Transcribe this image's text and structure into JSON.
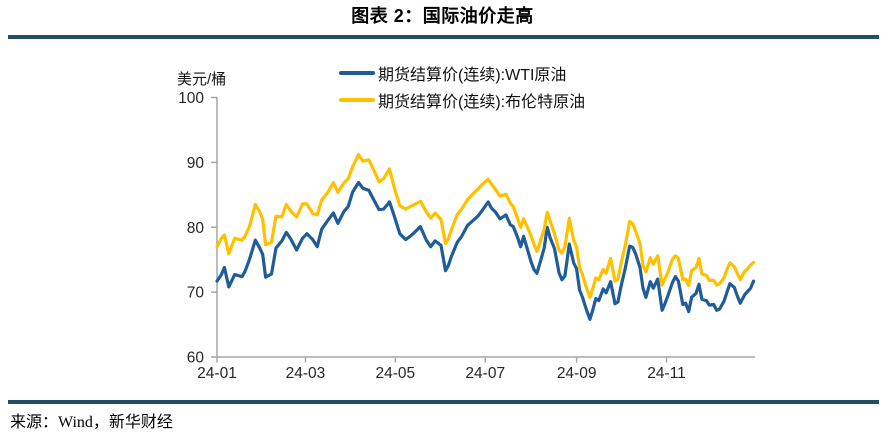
{
  "header": {
    "title": "图表 2：国际油价走高"
  },
  "footer": {
    "source": "来源：Wind，新华财经"
  },
  "colors": {
    "rule": "#1F5063",
    "wti": "#1F5C99",
    "brent": "#FFC000",
    "axis": "#A6A6A6",
    "tick_text": "#262626"
  },
  "chart_data": {
    "type": "line",
    "title": "图表 2：国际油价走高",
    "unit_label": "美元/桶",
    "ylabel": "美元/桶",
    "xlabel": "",
    "ylim": [
      60,
      100
    ],
    "y_ticks": [
      60,
      70,
      80,
      90,
      100
    ],
    "x_range_days": [
      0,
      365
    ],
    "x_ticks": [
      {
        "label": "24-01",
        "day": 0
      },
      {
        "label": "24-03",
        "day": 60
      },
      {
        "label": "24-05",
        "day": 121
      },
      {
        "label": "24-07",
        "day": 182
      },
      {
        "label": "24-09",
        "day": 244
      },
      {
        "label": "24-11",
        "day": 305
      }
    ],
    "grid": false,
    "legend_position": "top",
    "series": [
      {
        "name": "期货结算价(连续):WTI原油",
        "color_key": "wti",
        "points": [
          [
            0,
            71.7
          ],
          [
            3,
            72.7
          ],
          [
            5,
            73.8
          ],
          [
            8,
            70.8
          ],
          [
            12,
            72.7
          ],
          [
            17,
            72.4
          ],
          [
            19,
            73.2
          ],
          [
            22,
            75.0
          ],
          [
            26,
            78.0
          ],
          [
            29,
            76.8
          ],
          [
            31,
            75.8
          ],
          [
            33,
            72.3
          ],
          [
            37,
            72.8
          ],
          [
            40,
            76.8
          ],
          [
            44,
            77.9
          ],
          [
            47,
            79.2
          ],
          [
            50,
            78.2
          ],
          [
            54,
            76.5
          ],
          [
            58,
            78.3
          ],
          [
            61,
            79.0
          ],
          [
            65,
            78.1
          ],
          [
            68,
            77.0
          ],
          [
            71,
            79.7
          ],
          [
            75,
            81.0
          ],
          [
            79,
            82.2
          ],
          [
            82,
            80.6
          ],
          [
            86,
            82.4
          ],
          [
            89,
            83.2
          ],
          [
            92,
            85.4
          ],
          [
            96,
            86.9
          ],
          [
            99,
            86.0
          ],
          [
            103,
            85.7
          ],
          [
            106,
            84.4
          ],
          [
            110,
            82.7
          ],
          [
            113,
            82.8
          ],
          [
            117,
            83.9
          ],
          [
            120,
            81.9
          ],
          [
            124,
            79.0
          ],
          [
            128,
            78.1
          ],
          [
            131,
            78.6
          ],
          [
            134,
            79.2
          ],
          [
            138,
            80.1
          ],
          [
            142,
            78.0
          ],
          [
            145,
            77.0
          ],
          [
            148,
            77.9
          ],
          [
            152,
            77.2
          ],
          [
            155,
            73.3
          ],
          [
            157,
            74.1
          ],
          [
            159,
            75.5
          ],
          [
            163,
            77.7
          ],
          [
            166,
            78.6
          ],
          [
            170,
            80.3
          ],
          [
            173,
            80.9
          ],
          [
            177,
            81.7
          ],
          [
            180,
            82.6
          ],
          [
            184,
            83.9
          ],
          [
            186,
            83.0
          ],
          [
            189,
            82.3
          ],
          [
            192,
            81.3
          ],
          [
            196,
            81.9
          ],
          [
            199,
            80.4
          ],
          [
            201,
            80.1
          ],
          [
            204,
            78.4
          ],
          [
            206,
            77.0
          ],
          [
            208,
            78.6
          ],
          [
            211,
            76.3
          ],
          [
            213,
            74.7
          ],
          [
            215,
            73.5
          ],
          [
            217,
            72.9
          ],
          [
            220,
            75.2
          ],
          [
            222,
            76.8
          ],
          [
            224,
            80.0
          ],
          [
            226,
            78.4
          ],
          [
            229,
            76.7
          ],
          [
            232,
            73.0
          ],
          [
            234,
            71.9
          ],
          [
            236,
            72.5
          ],
          [
            239,
            77.4
          ],
          [
            242,
            74.5
          ],
          [
            244,
            73.6
          ],
          [
            246,
            70.3
          ],
          [
            248,
            69.2
          ],
          [
            250,
            67.7
          ],
          [
            253,
            65.8
          ],
          [
            255,
            67.3
          ],
          [
            257,
            69.0
          ],
          [
            259,
            68.7
          ],
          [
            262,
            70.5
          ],
          [
            264,
            69.9
          ],
          [
            267,
            71.6
          ],
          [
            270,
            68.2
          ],
          [
            272,
            68.5
          ],
          [
            274,
            70.8
          ],
          [
            277,
            73.7
          ],
          [
            280,
            77.1
          ],
          [
            282,
            76.9
          ],
          [
            284,
            75.9
          ],
          [
            287,
            73.8
          ],
          [
            289,
            70.6
          ],
          [
            291,
            69.2
          ],
          [
            294,
            71.6
          ],
          [
            296,
            70.6
          ],
          [
            299,
            72.0
          ],
          [
            302,
            67.2
          ],
          [
            304,
            68.3
          ],
          [
            306,
            69.5
          ],
          [
            309,
            71.5
          ],
          [
            311,
            72.4
          ],
          [
            313,
            71.7
          ],
          [
            316,
            68.1
          ],
          [
            318,
            68.3
          ],
          [
            320,
            67.0
          ],
          [
            322,
            69.2
          ],
          [
            325,
            69.8
          ],
          [
            327,
            71.2
          ],
          [
            329,
            68.9
          ],
          [
            332,
            68.7
          ],
          [
            334,
            68.0
          ],
          [
            337,
            68.1
          ],
          [
            339,
            67.2
          ],
          [
            341,
            67.4
          ],
          [
            344,
            68.6
          ],
          [
            346,
            70.0
          ],
          [
            348,
            71.3
          ],
          [
            351,
            70.7
          ],
          [
            353,
            69.4
          ],
          [
            355,
            68.3
          ],
          [
            358,
            69.6
          ],
          [
            360,
            70.1
          ],
          [
            362,
            70.6
          ],
          [
            364,
            71.7
          ]
        ]
      },
      {
        "name": "期货结算价(连续):布伦特原油",
        "color_key": "brent",
        "points": [
          [
            0,
            77.0
          ],
          [
            3,
            78.3
          ],
          [
            5,
            78.8
          ],
          [
            8,
            75.9
          ],
          [
            12,
            78.3
          ],
          [
            17,
            78.0
          ],
          [
            19,
            78.6
          ],
          [
            22,
            80.1
          ],
          [
            26,
            83.5
          ],
          [
            29,
            82.4
          ],
          [
            31,
            81.2
          ],
          [
            33,
            77.3
          ],
          [
            37,
            77.7
          ],
          [
            40,
            81.7
          ],
          [
            44,
            81.6
          ],
          [
            47,
            83.5
          ],
          [
            50,
            82.5
          ],
          [
            54,
            81.6
          ],
          [
            58,
            83.6
          ],
          [
            61,
            83.6
          ],
          [
            65,
            82.1
          ],
          [
            68,
            81.9
          ],
          [
            71,
            84.2
          ],
          [
            75,
            85.3
          ],
          [
            79,
            86.9
          ],
          [
            82,
            85.4
          ],
          [
            86,
            86.8
          ],
          [
            89,
            87.5
          ],
          [
            92,
            89.3
          ],
          [
            96,
            91.2
          ],
          [
            99,
            90.2
          ],
          [
            103,
            90.4
          ],
          [
            106,
            89.0
          ],
          [
            110,
            87.0
          ],
          [
            113,
            87.5
          ],
          [
            117,
            89.0
          ],
          [
            120,
            86.3
          ],
          [
            124,
            83.3
          ],
          [
            128,
            82.8
          ],
          [
            131,
            83.2
          ],
          [
            134,
            83.5
          ],
          [
            138,
            84.0
          ],
          [
            142,
            82.4
          ],
          [
            145,
            81.4
          ],
          [
            148,
            82.2
          ],
          [
            152,
            81.2
          ],
          [
            155,
            77.5
          ],
          [
            157,
            78.2
          ],
          [
            159,
            79.6
          ],
          [
            163,
            82.0
          ],
          [
            166,
            82.8
          ],
          [
            170,
            84.3
          ],
          [
            173,
            85.0
          ],
          [
            177,
            85.9
          ],
          [
            180,
            86.6
          ],
          [
            184,
            87.4
          ],
          [
            186,
            86.7
          ],
          [
            189,
            85.8
          ],
          [
            192,
            84.8
          ],
          [
            196,
            85.1
          ],
          [
            199,
            83.7
          ],
          [
            201,
            83.2
          ],
          [
            204,
            81.3
          ],
          [
            206,
            80.0
          ],
          [
            208,
            81.3
          ],
          [
            211,
            79.8
          ],
          [
            213,
            78.7
          ],
          [
            215,
            77.4
          ],
          [
            217,
            76.3
          ],
          [
            220,
            78.3
          ],
          [
            222,
            79.7
          ],
          [
            224,
            82.3
          ],
          [
            226,
            81.0
          ],
          [
            229,
            79.0
          ],
          [
            232,
            76.5
          ],
          [
            234,
            76.0
          ],
          [
            236,
            77.0
          ],
          [
            239,
            81.4
          ],
          [
            242,
            78.0
          ],
          [
            244,
            76.9
          ],
          [
            246,
            73.8
          ],
          [
            248,
            72.7
          ],
          [
            250,
            71.1
          ],
          [
            253,
            69.2
          ],
          [
            255,
            70.6
          ],
          [
            257,
            72.2
          ],
          [
            259,
            71.9
          ],
          [
            262,
            73.5
          ],
          [
            264,
            72.9
          ],
          [
            267,
            75.2
          ],
          [
            270,
            71.7
          ],
          [
            272,
            72.0
          ],
          [
            274,
            74.3
          ],
          [
            277,
            77.2
          ],
          [
            280,
            80.9
          ],
          [
            282,
            80.5
          ],
          [
            284,
            79.4
          ],
          [
            287,
            77.5
          ],
          [
            289,
            74.1
          ],
          [
            291,
            73.1
          ],
          [
            294,
            75.3
          ],
          [
            296,
            74.3
          ],
          [
            299,
            75.6
          ],
          [
            302,
            71.1
          ],
          [
            304,
            72.1
          ],
          [
            306,
            73.1
          ],
          [
            309,
            75.1
          ],
          [
            311,
            75.6
          ],
          [
            313,
            75.2
          ],
          [
            316,
            71.9
          ],
          [
            318,
            72.0
          ],
          [
            320,
            71.0
          ],
          [
            322,
            73.3
          ],
          [
            325,
            73.8
          ],
          [
            327,
            75.2
          ],
          [
            329,
            72.8
          ],
          [
            332,
            72.6
          ],
          [
            334,
            71.8
          ],
          [
            337,
            71.8
          ],
          [
            339,
            71.1
          ],
          [
            341,
            71.3
          ],
          [
            344,
            72.2
          ],
          [
            346,
            73.5
          ],
          [
            348,
            74.5
          ],
          [
            351,
            73.9
          ],
          [
            353,
            72.9
          ],
          [
            355,
            71.9
          ],
          [
            358,
            73.2
          ],
          [
            360,
            73.6
          ],
          [
            362,
            74.2
          ],
          [
            364,
            74.6
          ]
        ]
      }
    ]
  }
}
